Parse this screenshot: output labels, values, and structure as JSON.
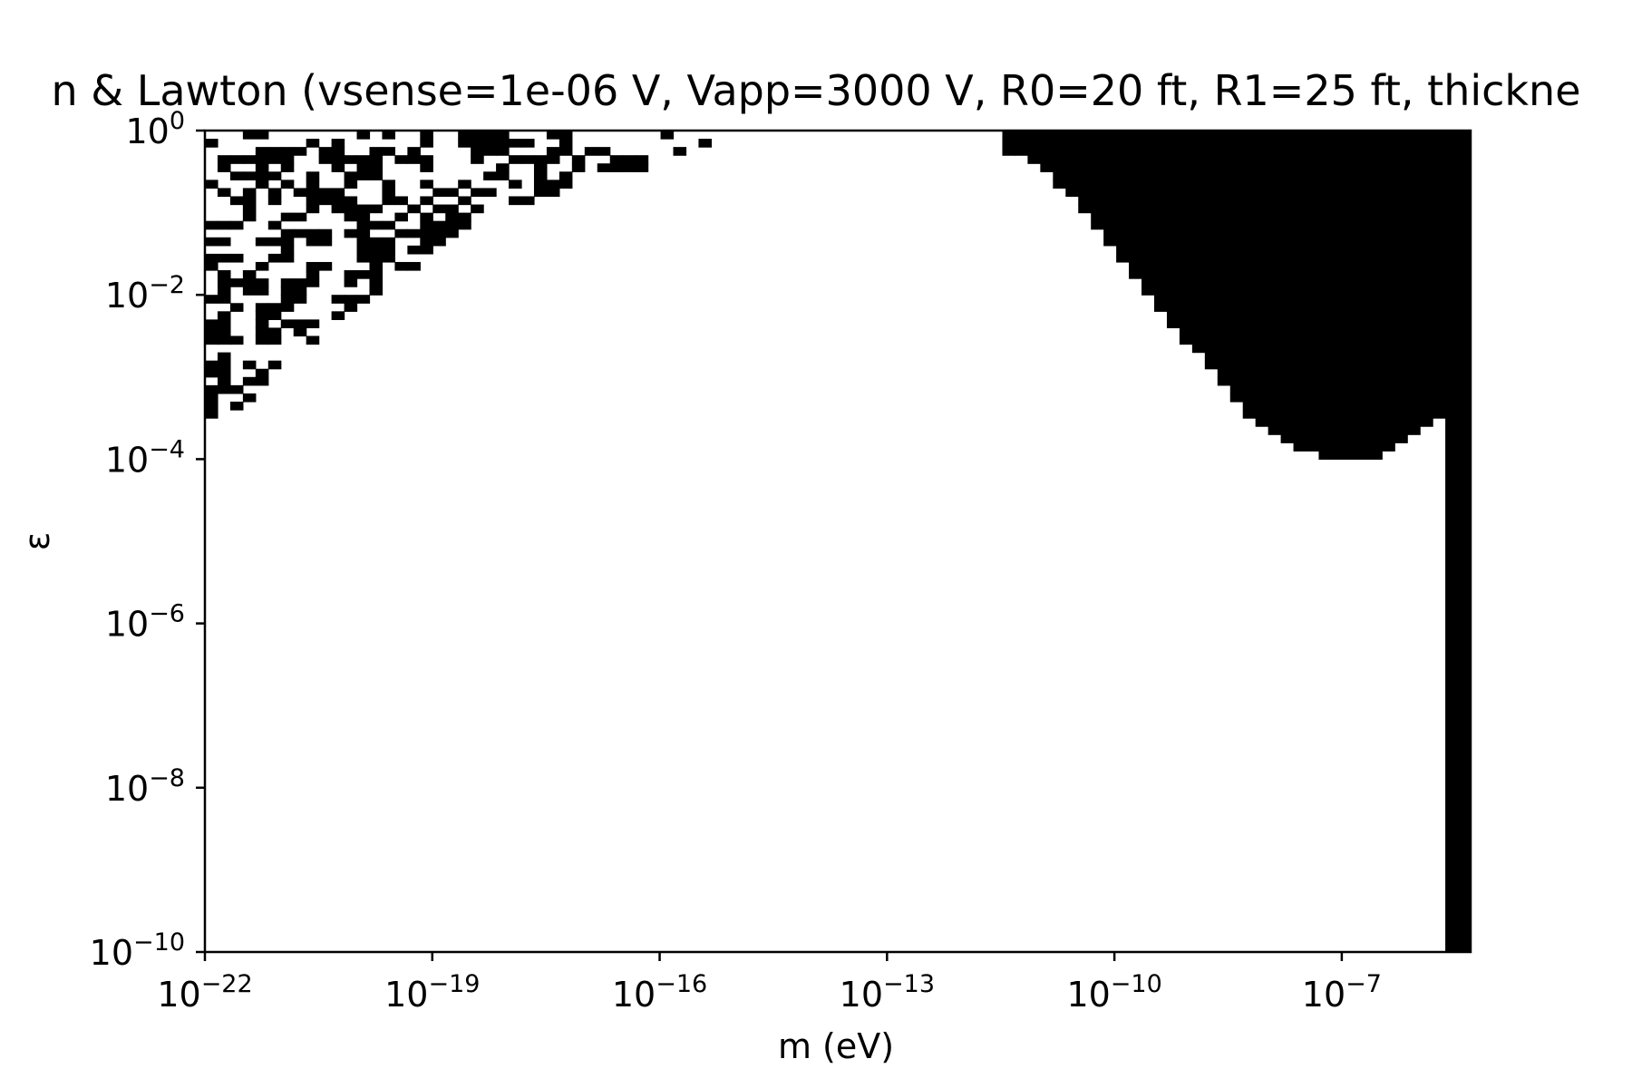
{
  "chart_data": {
    "type": "heatmap",
    "title": "n & Lawton (vsense=1e-06 V, Vapp=3000 V, R0=20 ft, R1=25 ft, thickne",
    "xlabel": "m (eV)",
    "ylabel": "ε",
    "xscale": "log",
    "yscale": "log",
    "xlim_exponent": [
      -22,
      -5.3
    ],
    "ylim_exponent": [
      -10,
      0
    ],
    "x_tick_exponents": [
      -22,
      -19,
      -16,
      -13,
      -10,
      -7
    ],
    "y_tick_exponents": [
      -10,
      -8,
      -6,
      -4,
      -2,
      0
    ],
    "x_tick_labels": [
      "10^-22",
      "10^-19",
      "10^-16",
      "10^-13",
      "10^-10",
      "10^-7"
    ],
    "y_tick_labels": [
      "10^-10",
      "10^-8",
      "10^-6",
      "10^-4",
      "10^-2",
      "10^0"
    ],
    "grid": false,
    "colormap": {
      "excluded": "#000000",
      "allowed": "#ffffff"
    },
    "regions": [
      {
        "name": "",
        "kind": "noisy",
        "polygon_log10": [
          [
            -22,
            -1.8
          ],
          [
            -22,
            0
          ],
          [
            -14.8,
            0
          ],
          [
            -18.6,
            -1.2
          ],
          [
            -20.4,
            -2.5
          ],
          [
            -22,
            -3.7
          ]
        ],
        "fill_fraction": 0.45
      },
      {
        "name": "",
        "kind": "solid",
        "polygon_log10": [
          [
            -11.4,
            0
          ],
          [
            -5.3,
            0
          ],
          [
            -5.3,
            -10
          ],
          [
            -5.7,
            -10
          ],
          [
            -5.7,
            -3.45
          ],
          [
            -6.2,
            -3.75
          ],
          [
            -6.6,
            -4.0
          ],
          [
            -7.2,
            -4.0
          ],
          [
            -8.0,
            -3.7
          ],
          [
            -9.2,
            -2.4
          ],
          [
            -10.4,
            -1.0
          ],
          [
            -11.0,
            -0.4
          ],
          [
            -11.4,
            -0.3
          ]
        ]
      }
    ]
  }
}
